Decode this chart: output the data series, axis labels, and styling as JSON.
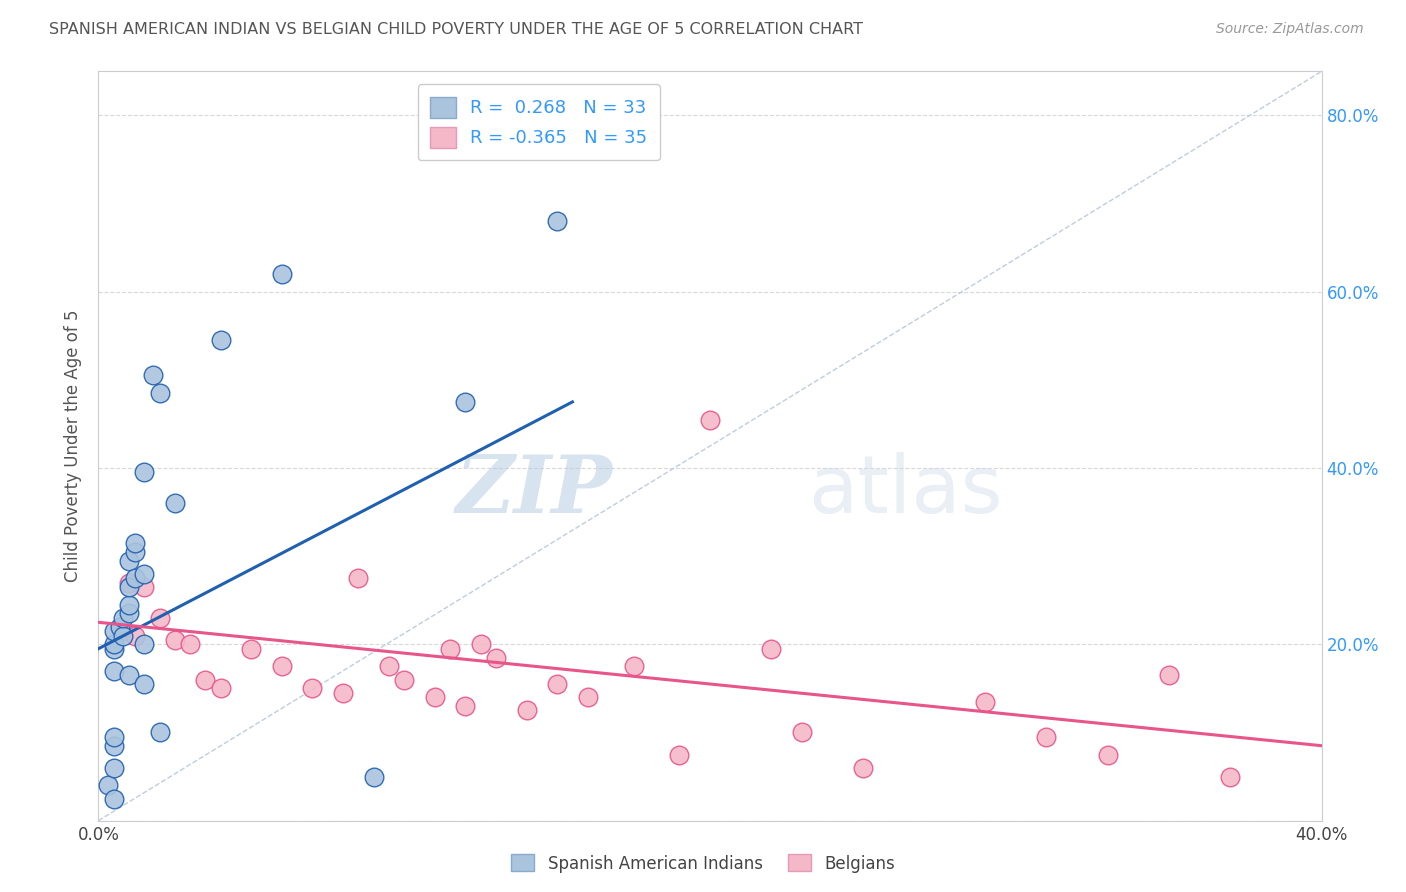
{
  "title": "SPANISH AMERICAN INDIAN VS BELGIAN CHILD POVERTY UNDER THE AGE OF 5 CORRELATION CHART",
  "source": "Source: ZipAtlas.com",
  "ylabel": "Child Poverty Under the Age of 5",
  "xlim": [
    0.0,
    0.4
  ],
  "ylim": [
    0.0,
    0.85
  ],
  "xtick_positions": [
    0.0,
    0.1,
    0.2,
    0.3,
    0.4
  ],
  "xticklabels": [
    "0.0%",
    "",
    "",
    "",
    "40.0%"
  ],
  "ytick_positions": [
    0.0,
    0.2,
    0.4,
    0.6,
    0.8
  ],
  "yticklabels": [
    "",
    "20.0%",
    "40.0%",
    "60.0%",
    "80.0%"
  ],
  "R_blue": 0.268,
  "N_blue": 33,
  "R_pink": -0.365,
  "N_pink": 35,
  "watermark_zip": "ZIP",
  "watermark_atlas": "atlas",
  "blue_scatter_x": [
    0.003,
    0.005,
    0.005,
    0.005,
    0.005,
    0.005,
    0.005,
    0.005,
    0.005,
    0.007,
    0.008,
    0.008,
    0.01,
    0.01,
    0.01,
    0.01,
    0.01,
    0.012,
    0.012,
    0.012,
    0.015,
    0.015,
    0.015,
    0.015,
    0.018,
    0.02,
    0.02,
    0.025,
    0.04,
    0.06,
    0.09,
    0.12,
    0.15
  ],
  "blue_scatter_y": [
    0.04,
    0.025,
    0.06,
    0.085,
    0.095,
    0.17,
    0.195,
    0.2,
    0.215,
    0.22,
    0.21,
    0.23,
    0.165,
    0.235,
    0.245,
    0.265,
    0.295,
    0.275,
    0.305,
    0.315,
    0.155,
    0.2,
    0.28,
    0.395,
    0.505,
    0.485,
    0.1,
    0.36,
    0.545,
    0.62,
    0.05,
    0.475,
    0.68
  ],
  "pink_scatter_x": [
    0.008,
    0.01,
    0.012,
    0.015,
    0.02,
    0.025,
    0.03,
    0.035,
    0.04,
    0.05,
    0.06,
    0.07,
    0.08,
    0.085,
    0.095,
    0.1,
    0.11,
    0.115,
    0.12,
    0.125,
    0.13,
    0.14,
    0.15,
    0.16,
    0.175,
    0.19,
    0.2,
    0.22,
    0.23,
    0.25,
    0.29,
    0.31,
    0.33,
    0.35,
    0.37
  ],
  "pink_scatter_y": [
    0.215,
    0.27,
    0.21,
    0.265,
    0.23,
    0.205,
    0.2,
    0.16,
    0.15,
    0.195,
    0.175,
    0.15,
    0.145,
    0.275,
    0.175,
    0.16,
    0.14,
    0.195,
    0.13,
    0.2,
    0.185,
    0.125,
    0.155,
    0.14,
    0.175,
    0.075,
    0.455,
    0.195,
    0.1,
    0.06,
    0.135,
    0.095,
    0.075,
    0.165,
    0.05
  ],
  "blue_line_x": [
    0.0,
    0.155
  ],
  "blue_line_y": [
    0.195,
    0.475
  ],
  "pink_line_x": [
    0.0,
    0.4
  ],
  "pink_line_y": [
    0.225,
    0.085
  ],
  "blue_color": "#aac4de",
  "pink_color": "#f4b8c8",
  "blue_line_color": "#2060b0",
  "pink_line_color": "#e8558a",
  "diag_line_color": "#b8c8d8",
  "grid_color": "#d0d0d0",
  "background_color": "#ffffff",
  "right_axis_color": "#3399ff",
  "title_color": "#555555"
}
